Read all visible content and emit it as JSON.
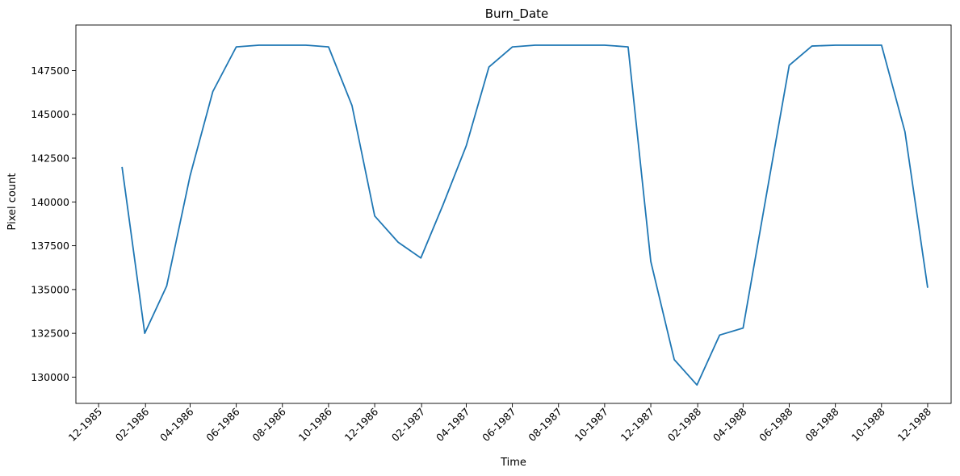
{
  "chart_data": {
    "type": "line",
    "title": "Burn_Date",
    "xlabel": "Time",
    "ylabel": "Pixel count",
    "color": "#1f77b4",
    "grid": false,
    "legend": "none",
    "x": [
      "1986-01-01",
      "1986-01-31",
      "1986-03-01",
      "1986-04-01",
      "1986-05-01",
      "1986-06-01",
      "1986-07-01",
      "1986-08-01",
      "1986-09-01",
      "1986-10-01",
      "1986-11-01",
      "1986-12-01",
      "1987-01-01",
      "1987-01-31",
      "1987-03-01",
      "1987-04-01",
      "1987-05-01",
      "1987-06-01",
      "1987-07-01",
      "1987-08-01",
      "1987-09-01",
      "1987-10-01",
      "1987-11-01",
      "1987-12-01",
      "1988-01-01",
      "1988-01-31",
      "1988-03-01",
      "1988-04-01",
      "1988-05-01",
      "1988-06-01",
      "1988-07-01",
      "1988-08-01",
      "1988-09-01",
      "1988-10-01",
      "1988-11-01",
      "1988-12-01"
    ],
    "series": [
      {
        "values": [
          142000,
          132500,
          135200,
          141500,
          146300,
          148850,
          148950,
          148950,
          148950,
          148850,
          145500,
          139200,
          137700,
          136800,
          139800,
          143200,
          147700,
          148850,
          148950,
          148950,
          148950,
          148950,
          148850,
          136600,
          131000,
          129550,
          132400,
          132800,
          140200,
          147800,
          148900,
          148950,
          148950,
          148950,
          144000,
          135100
        ]
      }
    ],
    "yticks": [
      130000,
      132500,
      135000,
      137500,
      140000,
      142500,
      145000,
      147500
    ],
    "xticks": [
      "1985-12-01",
      "1986-02-01",
      "1986-04-01",
      "1986-06-01",
      "1986-08-01",
      "1986-10-01",
      "1986-12-01",
      "1987-02-01",
      "1987-04-01",
      "1987-06-01",
      "1987-08-01",
      "1987-10-01",
      "1987-12-01",
      "1988-02-01",
      "1988-04-01",
      "1988-06-01",
      "1988-08-01",
      "1988-10-01",
      "1988-12-01"
    ],
    "xtick_labels": [
      "12-1985",
      "02-1986",
      "04-1986",
      "06-1986",
      "08-1986",
      "10-1986",
      "12-1986",
      "02-1987",
      "04-1987",
      "06-1987",
      "08-1987",
      "10-1987",
      "12-1987",
      "02-1988",
      "04-1988",
      "06-1988",
      "08-1988",
      "10-1988",
      "12-1988"
    ],
    "xlim": [
      "1985-11-01",
      "1989-01-01"
    ],
    "ylim": [
      128500,
      150100
    ]
  }
}
